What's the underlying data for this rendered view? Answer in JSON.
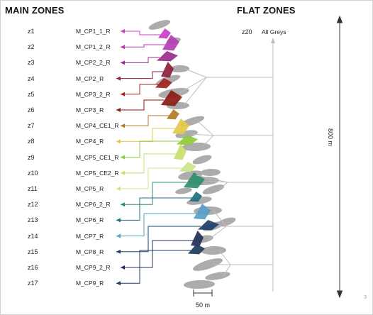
{
  "headings": {
    "main": "MAIN ZONES",
    "flat": "FLAT ZONES"
  },
  "main_zones": [
    {
      "id": "z1",
      "name": "M_CP1_1_R",
      "color": "#c83fc8"
    },
    {
      "id": "z2",
      "name": "M_CP1_2_R",
      "color": "#b23db3"
    },
    {
      "id": "z3",
      "name": "M_CP2_2_R",
      "color": "#9a2d8c"
    },
    {
      "id": "z4",
      "name": "M_CP2_R",
      "color": "#8c1f3a"
    },
    {
      "id": "z5",
      "name": "M_CP3_2_R",
      "color": "#a3241c"
    },
    {
      "id": "z6",
      "name": "M_CP3_R",
      "color": "#8a1a12"
    },
    {
      "id": "z7",
      "name": "M_CP4_CE1_R",
      "color": "#b07a2a"
    },
    {
      "id": "z8",
      "name": "M_CP4_R",
      "color": "#e3c94a"
    },
    {
      "id": "z9",
      "name": "M_CP5_CE1_R",
      "color": "#8fc93a"
    },
    {
      "id": "z10",
      "name": "M_CP5_CE2_R",
      "color": "#c7df6a"
    },
    {
      "id": "z11",
      "name": "M_CP5_R",
      "color": "#c9e58a"
    },
    {
      "id": "z12",
      "name": "M_CP6_2_R",
      "color": "#2e8f6a"
    },
    {
      "id": "z13",
      "name": "M_CP6_R",
      "color": "#1f6f7f"
    },
    {
      "id": "z14",
      "name": "M_CP7_R",
      "color": "#5a9ec8"
    },
    {
      "id": "z15",
      "name": "M_CP8_R",
      "color": "#1f3f6a"
    },
    {
      "id": "z16",
      "name": "M_CP9_2_R",
      "color": "#24305a"
    },
    {
      "id": "z17",
      "name": "M_CP9_R",
      "color": "#1e3a5a"
    }
  ],
  "flat_zone": {
    "id": "z20",
    "name": "All Greys",
    "color": "#b8b8b8"
  },
  "dimensions": {
    "vertical": "800 m",
    "horizontal": "50 m"
  },
  "page_number": "3"
}
